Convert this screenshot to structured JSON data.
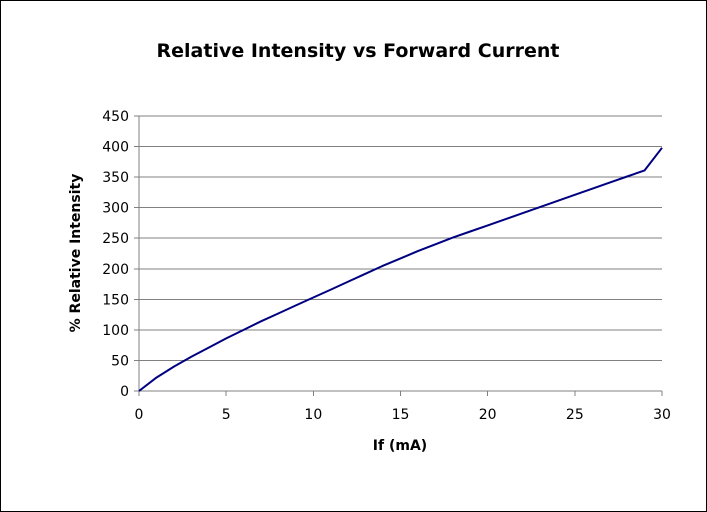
{
  "chart_data": {
    "type": "line",
    "title": "Relative Intensity vs Forward Current",
    "xlabel": "If (mA)",
    "ylabel": "% Relative Intensity",
    "xlim": [
      0,
      30
    ],
    "ylim": [
      0,
      450
    ],
    "xticks": [
      0,
      5,
      10,
      15,
      20,
      25,
      30
    ],
    "yticks": [
      0,
      50,
      100,
      150,
      200,
      250,
      300,
      350,
      400,
      450
    ],
    "grid": "horizontal",
    "legend": "none",
    "series": [
      {
        "color": "#000080",
        "x": [
          0,
          1,
          2,
          3,
          4,
          5,
          6,
          7,
          8,
          9,
          10,
          11,
          12,
          13,
          14,
          15,
          16,
          17,
          18,
          19,
          20,
          21,
          22,
          23,
          24,
          25,
          26,
          27,
          28,
          29,
          30
        ],
        "y": [
          0,
          22,
          40,
          56,
          71,
          86,
          100,
          114,
          127,
          140,
          153,
          166,
          179,
          192,
          205,
          217,
          229,
          240,
          251,
          261,
          271,
          281,
          291,
          301,
          311,
          321,
          331,
          341,
          351,
          361,
          398
        ]
      }
    ]
  }
}
